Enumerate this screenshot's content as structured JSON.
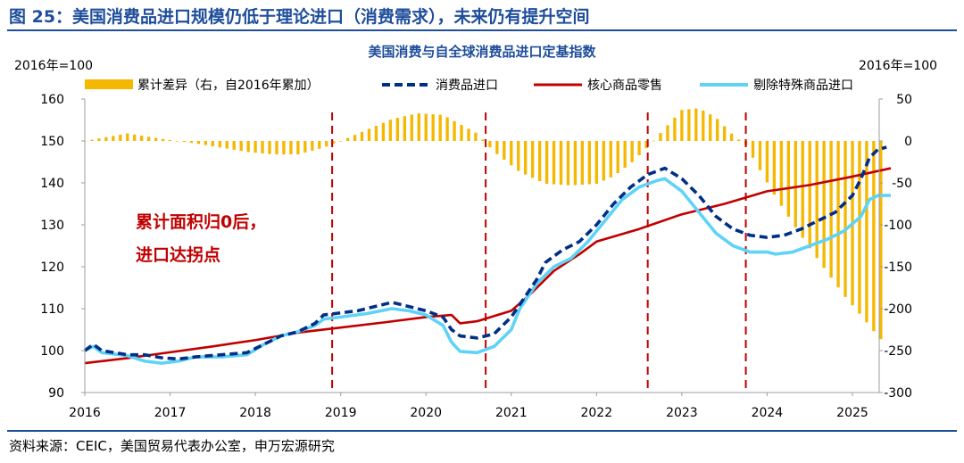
{
  "figure": {
    "title": "图 25：美国消费品进口规模仍低于理论进口（消费需求），未来仍有提升空间",
    "source": "资料来源：CEIC，美国贸易代表办公室，申万宏源研究"
  },
  "chart_data": {
    "type": "line",
    "title": "美国消费与自全球消费品进口定基指数",
    "left_unit": "2016年=100",
    "right_unit": "2016年=100",
    "annotation_lines": [
      "累计面积归0后，",
      "进口达拐点"
    ],
    "ylim_left": [
      90,
      160
    ],
    "ylim_right": [
      -300,
      50
    ],
    "xlim": [
      2016,
      2025.45
    ],
    "yticks_left": [
      90,
      100,
      110,
      120,
      130,
      140,
      150,
      160
    ],
    "yticks_right": [
      -300,
      -250,
      -200,
      -150,
      -100,
      -50,
      0,
      50
    ],
    "xticks": [
      2016,
      2017,
      2018,
      2019,
      2020,
      2021,
      2022,
      2023,
      2024,
      2025
    ],
    "vlines": [
      2018.9,
      2020.7,
      2022.6,
      2023.75
    ],
    "grid": false,
    "legend_position": "top",
    "colors": {
      "cum_diff": "#f5b800",
      "consumer_imports": "#002f87",
      "core_retail": "#c00000",
      "ex_special_imports": "#5fd3f7",
      "vline": "#c00000"
    },
    "series": [
      {
        "name": "累计差异（右，自2016年累加）",
        "kind": "bar",
        "axis": "right",
        "points": [
          [
            2016.0,
            0
          ],
          [
            2016.5,
            9
          ],
          [
            2017.0,
            1
          ],
          [
            2017.3,
            -3
          ],
          [
            2017.6,
            -8
          ],
          [
            2017.9,
            -13
          ],
          [
            2018.2,
            -16
          ],
          [
            2018.5,
            -16
          ],
          [
            2018.8,
            -8
          ],
          [
            2019.0,
            0
          ],
          [
            2019.3,
            13
          ],
          [
            2019.6,
            26
          ],
          [
            2019.9,
            33
          ],
          [
            2020.2,
            31
          ],
          [
            2020.4,
            20
          ],
          [
            2020.6,
            9
          ],
          [
            2020.8,
            -13
          ],
          [
            2021.1,
            -37
          ],
          [
            2021.4,
            -51
          ],
          [
            2021.7,
            -53
          ],
          [
            2022.0,
            -51
          ],
          [
            2022.2,
            -42
          ],
          [
            2022.4,
            -27
          ],
          [
            2022.6,
            -7
          ],
          [
            2022.8,
            15
          ],
          [
            2023.0,
            37
          ],
          [
            2023.2,
            39
          ],
          [
            2023.4,
            28
          ],
          [
            2023.6,
            7
          ],
          [
            2023.75,
            -5
          ],
          [
            2023.9,
            -32
          ],
          [
            2024.1,
            -67
          ],
          [
            2024.3,
            -98
          ],
          [
            2024.5,
            -128
          ],
          [
            2024.7,
            -156
          ],
          [
            2024.9,
            -184
          ],
          [
            2025.1,
            -208
          ],
          [
            2025.3,
            -233
          ],
          [
            2025.4,
            -243
          ]
        ]
      },
      {
        "name": "消费品进口",
        "kind": "line",
        "style": "dashed",
        "axis": "left",
        "points": [
          [
            2016.0,
            100
          ],
          [
            2016.1,
            101.5
          ],
          [
            2016.2,
            100
          ],
          [
            2016.5,
            99
          ],
          [
            2016.7,
            99
          ],
          [
            2016.9,
            98.3
          ],
          [
            2017.1,
            98
          ],
          [
            2017.3,
            98.5
          ],
          [
            2017.6,
            99
          ],
          [
            2017.9,
            99.5
          ],
          [
            2018.1,
            101.5
          ],
          [
            2018.3,
            103.5
          ],
          [
            2018.5,
            104.5
          ],
          [
            2018.7,
            106.5
          ],
          [
            2018.8,
            108.5
          ],
          [
            2019.0,
            109
          ],
          [
            2019.2,
            109.5
          ],
          [
            2019.4,
            110.5
          ],
          [
            2019.6,
            111.5
          ],
          [
            2019.8,
            110.5
          ],
          [
            2020.0,
            109.5
          ],
          [
            2020.2,
            108
          ],
          [
            2020.3,
            105
          ],
          [
            2020.4,
            103.5
          ],
          [
            2020.6,
            103
          ],
          [
            2020.8,
            104
          ],
          [
            2021.0,
            108
          ],
          [
            2021.1,
            111
          ],
          [
            2021.3,
            117
          ],
          [
            2021.4,
            121
          ],
          [
            2021.6,
            124
          ],
          [
            2021.8,
            126
          ],
          [
            2022.0,
            130
          ],
          [
            2022.2,
            135
          ],
          [
            2022.4,
            139
          ],
          [
            2022.6,
            142
          ],
          [
            2022.8,
            143.5
          ],
          [
            2023.0,
            141
          ],
          [
            2023.2,
            137
          ],
          [
            2023.4,
            132
          ],
          [
            2023.6,
            129
          ],
          [
            2023.8,
            127.5
          ],
          [
            2024.0,
            127
          ],
          [
            2024.2,
            127.5
          ],
          [
            2024.4,
            129
          ],
          [
            2024.6,
            131
          ],
          [
            2024.8,
            133
          ],
          [
            2025.0,
            137
          ],
          [
            2025.1,
            141
          ],
          [
            2025.2,
            146
          ],
          [
            2025.3,
            148
          ],
          [
            2025.4,
            148.5
          ]
        ]
      },
      {
        "name": "核心商品零售",
        "kind": "line",
        "style": "solid",
        "axis": "left",
        "points": [
          [
            2016.0,
            97
          ],
          [
            2016.5,
            98.2
          ],
          [
            2017.0,
            99.6
          ],
          [
            2017.5,
            101
          ],
          [
            2018.0,
            102.5
          ],
          [
            2018.5,
            104.3
          ],
          [
            2019.0,
            105.5
          ],
          [
            2019.5,
            106.7
          ],
          [
            2020.0,
            108
          ],
          [
            2020.3,
            108.5
          ],
          [
            2020.4,
            106.5
          ],
          [
            2020.6,
            107
          ],
          [
            2021.0,
            109.5
          ],
          [
            2021.2,
            113
          ],
          [
            2021.5,
            119
          ],
          [
            2021.8,
            123
          ],
          [
            2022.0,
            126
          ],
          [
            2022.5,
            129
          ],
          [
            2023.0,
            132.5
          ],
          [
            2023.5,
            135
          ],
          [
            2024.0,
            138
          ],
          [
            2024.5,
            139.5
          ],
          [
            2025.0,
            141.5
          ],
          [
            2025.45,
            143.5
          ]
        ]
      },
      {
        "name": "剔除特殊商品进口",
        "kind": "line",
        "style": "solid",
        "axis": "left",
        "points": [
          [
            2016.0,
            100
          ],
          [
            2016.1,
            101
          ],
          [
            2016.2,
            99.5
          ],
          [
            2016.5,
            98.8
          ],
          [
            2016.7,
            97.5
          ],
          [
            2016.9,
            97
          ],
          [
            2017.1,
            97.5
          ],
          [
            2017.3,
            98.5
          ],
          [
            2017.6,
            98.5
          ],
          [
            2017.9,
            99
          ],
          [
            2018.1,
            101.5
          ],
          [
            2018.3,
            103.5
          ],
          [
            2018.5,
            104.5
          ],
          [
            2018.7,
            106
          ],
          [
            2018.8,
            107.5
          ],
          [
            2019.0,
            108
          ],
          [
            2019.3,
            108.8
          ],
          [
            2019.6,
            110
          ],
          [
            2019.8,
            109.5
          ],
          [
            2020.0,
            108.5
          ],
          [
            2020.2,
            106
          ],
          [
            2020.3,
            102
          ],
          [
            2020.4,
            99.8
          ],
          [
            2020.6,
            99.5
          ],
          [
            2020.8,
            101
          ],
          [
            2021.0,
            105
          ],
          [
            2021.1,
            110
          ],
          [
            2021.3,
            116
          ],
          [
            2021.5,
            120
          ],
          [
            2021.7,
            122
          ],
          [
            2021.9,
            126
          ],
          [
            2022.1,
            131
          ],
          [
            2022.3,
            136
          ],
          [
            2022.5,
            139
          ],
          [
            2022.7,
            140.5
          ],
          [
            2022.8,
            141
          ],
          [
            2023.0,
            138
          ],
          [
            2023.2,
            133
          ],
          [
            2023.4,
            128
          ],
          [
            2023.6,
            125
          ],
          [
            2023.8,
            123.5
          ],
          [
            2024.0,
            123.5
          ],
          [
            2024.1,
            123
          ],
          [
            2024.3,
            123.5
          ],
          [
            2024.5,
            125
          ],
          [
            2024.7,
            126.5
          ],
          [
            2024.9,
            128.5
          ],
          [
            2025.1,
            132
          ],
          [
            2025.2,
            136
          ],
          [
            2025.3,
            137
          ],
          [
            2025.45,
            137
          ]
        ]
      }
    ]
  }
}
